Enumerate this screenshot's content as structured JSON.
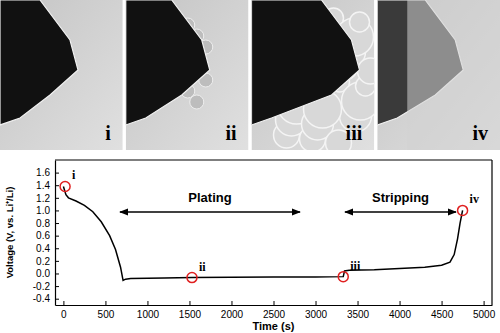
{
  "chart_data": {
    "type": "line",
    "x_label": "Time (s)",
    "y_label": "Voltage (V, vs. Li⁺/Li)",
    "x": [
      0,
      30,
      60,
      150,
      250,
      350,
      450,
      550,
      620,
      680,
      710,
      740,
      800,
      1200,
      1530,
      2000,
      2500,
      3000,
      3330,
      3345,
      3400,
      3700,
      4000,
      4300,
      4500,
      4600,
      4650,
      4690,
      4720,
      4750
    ],
    "values": [
      1.38,
      1.25,
      1.2,
      1.15,
      1.08,
      0.98,
      0.82,
      0.6,
      0.38,
      0.1,
      -0.11,
      -0.09,
      -0.08,
      -0.07,
      -0.065,
      -0.06,
      -0.055,
      -0.055,
      -0.05,
      0.04,
      0.05,
      0.06,
      0.08,
      0.1,
      0.13,
      0.18,
      0.3,
      0.55,
      0.8,
      1.0
    ],
    "color": "#000000",
    "points": {
      "labels": [
        "i",
        "ii",
        "iii",
        "iv"
      ],
      "x": [
        20,
        1530,
        3330,
        4750
      ],
      "y": [
        1.38,
        -0.065,
        -0.05,
        1.0
      ],
      "color": "#e02020",
      "marker": "open-circle"
    },
    "annotations": [
      "Plating",
      "Stripping"
    ],
    "xlim": [
      -100,
      5100
    ],
    "xticks": [
      0,
      500,
      1000,
      1500,
      2000,
      2500,
      3000,
      3500,
      4000,
      4500,
      5000
    ],
    "ylim": [
      -0.5,
      1.8
    ],
    "yticks": [
      -0.4,
      -0.2,
      {
        "value": 0,
        "label": "0.0"
      },
      0.2,
      0.4,
      0.6,
      0.8,
      {
        "value": 1,
        "label": "1.0"
      },
      1.2,
      1.4,
      1.6
    ],
    "grid": false
  },
  "images": {
    "labels": [
      "i",
      "ii",
      "iii",
      "iv"
    ]
  }
}
